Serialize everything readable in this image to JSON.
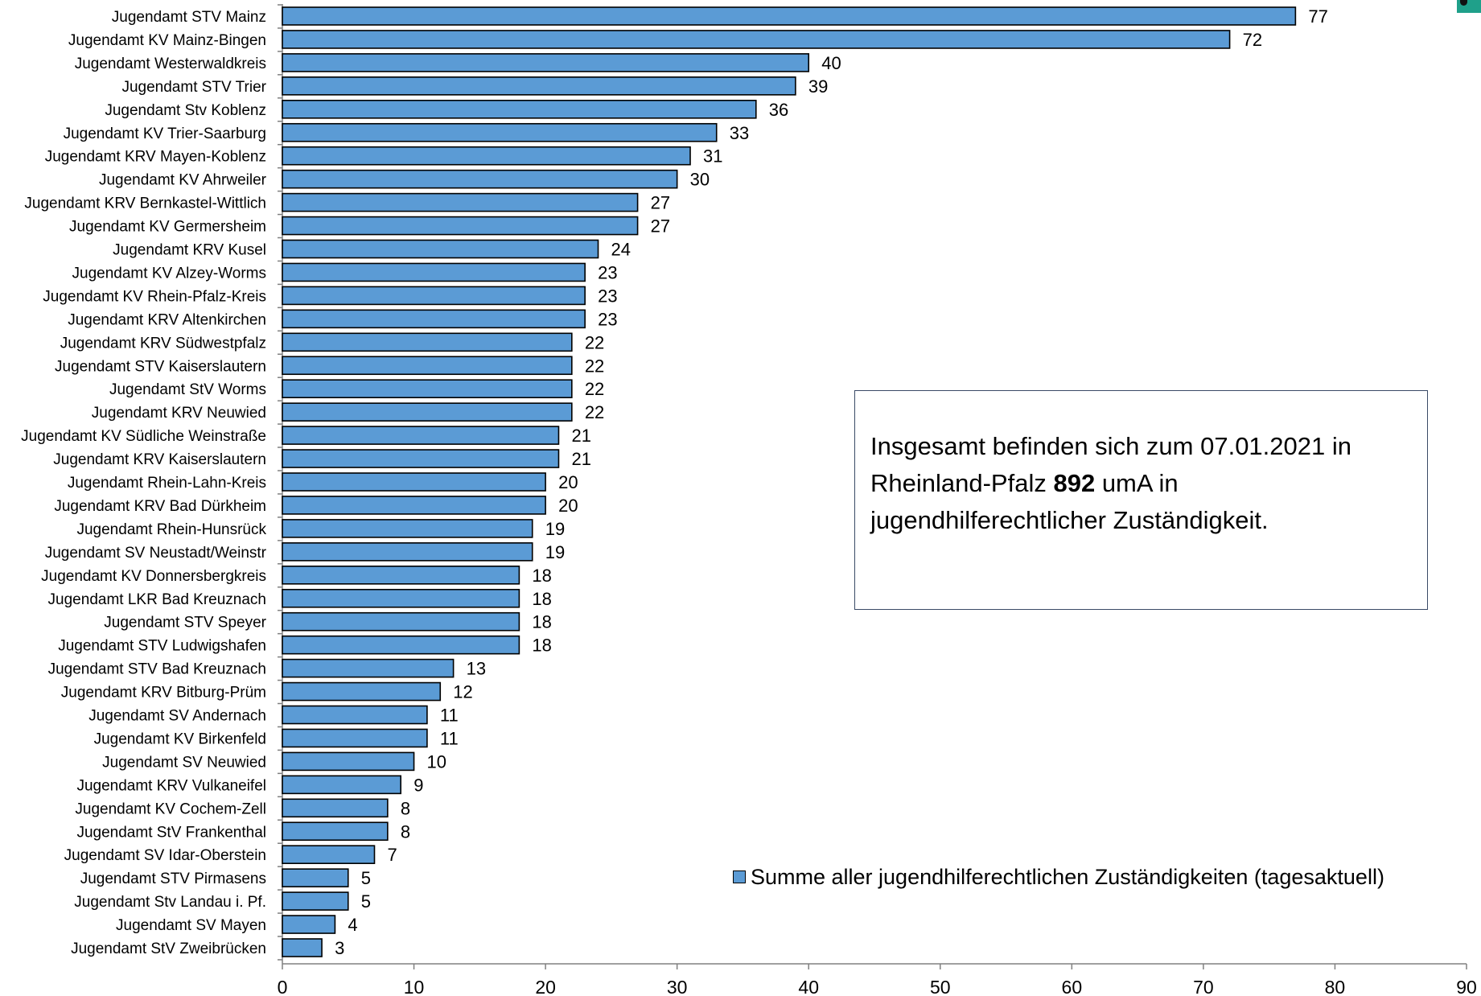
{
  "chart_data": {
    "type": "bar",
    "orientation": "horizontal",
    "categories": [
      "Jugendamt STV Mainz",
      "Jugendamt KV Mainz-Bingen",
      "Jugendamt Westerwaldkreis",
      "Jugendamt STV Trier",
      "Jugendamt Stv Koblenz",
      "Jugendamt KV Trier-Saarburg",
      "Jugendamt KRV Mayen-Koblenz",
      "Jugendamt KV Ahrweiler",
      "Jugendamt KRV Bernkastel-Wittlich",
      "Jugendamt KV Germersheim",
      "Jugendamt KRV Kusel",
      "Jugendamt KV Alzey-Worms",
      "Jugendamt KV Rhein-Pfalz-Kreis",
      "Jugendamt KRV Altenkirchen",
      "Jugendamt KRV Südwestpfalz",
      "Jugendamt STV Kaiserslautern",
      "Jugendamt StV Worms",
      "Jugendamt KRV Neuwied",
      "Jugendamt KV Südliche Weinstraße",
      "Jugendamt KRV Kaiserslautern",
      "Jugendamt Rhein-Lahn-Kreis",
      "Jugendamt KRV Bad Dürkheim",
      "Jugendamt Rhein-Hunsrück",
      "Jugendamt SV Neustadt/Weinstr",
      "Jugendamt KV Donnersbergkreis",
      "Jugendamt LKR Bad Kreuznach",
      "Jugendamt STV Speyer",
      "Jugendamt STV Ludwigshafen",
      "Jugendamt STV Bad Kreuznach",
      "Jugendamt KRV Bitburg-Prüm",
      "Jugendamt SV Andernach",
      "Jugendamt KV Birkenfeld",
      "Jugendamt SV Neuwied",
      "Jugendamt KRV Vulkaneifel",
      "Jugendamt KV Cochem-Zell",
      "Jugendamt StV Frankenthal",
      "Jugendamt SV Idar-Oberstein",
      "Jugendamt STV Pirmasens",
      "Jugendamt Stv Landau i. Pf.",
      "Jugendamt SV Mayen",
      "Jugendamt StV Zweibrücken"
    ],
    "series": [
      {
        "name": "Summe aller jugendhilferechtlichen Zuständigkeiten (tagesaktuell)",
        "color": "#5b9bd5",
        "values": [
          77,
          72,
          40,
          39,
          36,
          33,
          31,
          30,
          27,
          27,
          24,
          23,
          23,
          23,
          22,
          22,
          22,
          22,
          21,
          21,
          20,
          20,
          19,
          19,
          18,
          18,
          18,
          18,
          13,
          12,
          11,
          11,
          10,
          9,
          8,
          8,
          7,
          5,
          5,
          4,
          3
        ]
      }
    ],
    "xlim": [
      0,
      90
    ],
    "xticks": [
      0,
      10,
      20,
      30,
      40,
      50,
      60,
      70,
      80,
      90
    ],
    "data_labels": true,
    "grid": false,
    "legend_position": "bottom-right",
    "title": "",
    "xlabel": "",
    "ylabel": ""
  },
  "note": {
    "line1": "Insgesamt befinden sich zum 07.01.2021 in",
    "line2_before": "Rheinland-Pfalz ",
    "line2_bold": "892",
    "line2_after": " umA in",
    "line3": "jugendhilferechtlicher Zuständigkeit."
  },
  "legend": {
    "label": "Summe aller jugendhilferechtlichen Zuständigkeiten (tagesaktuell)",
    "color": "#5b9bd5"
  },
  "colors": {
    "bar_fill": "#5b9bd5",
    "bar_stroke": "#000000",
    "axis": "#808080",
    "note_border": "#3a4a66"
  }
}
